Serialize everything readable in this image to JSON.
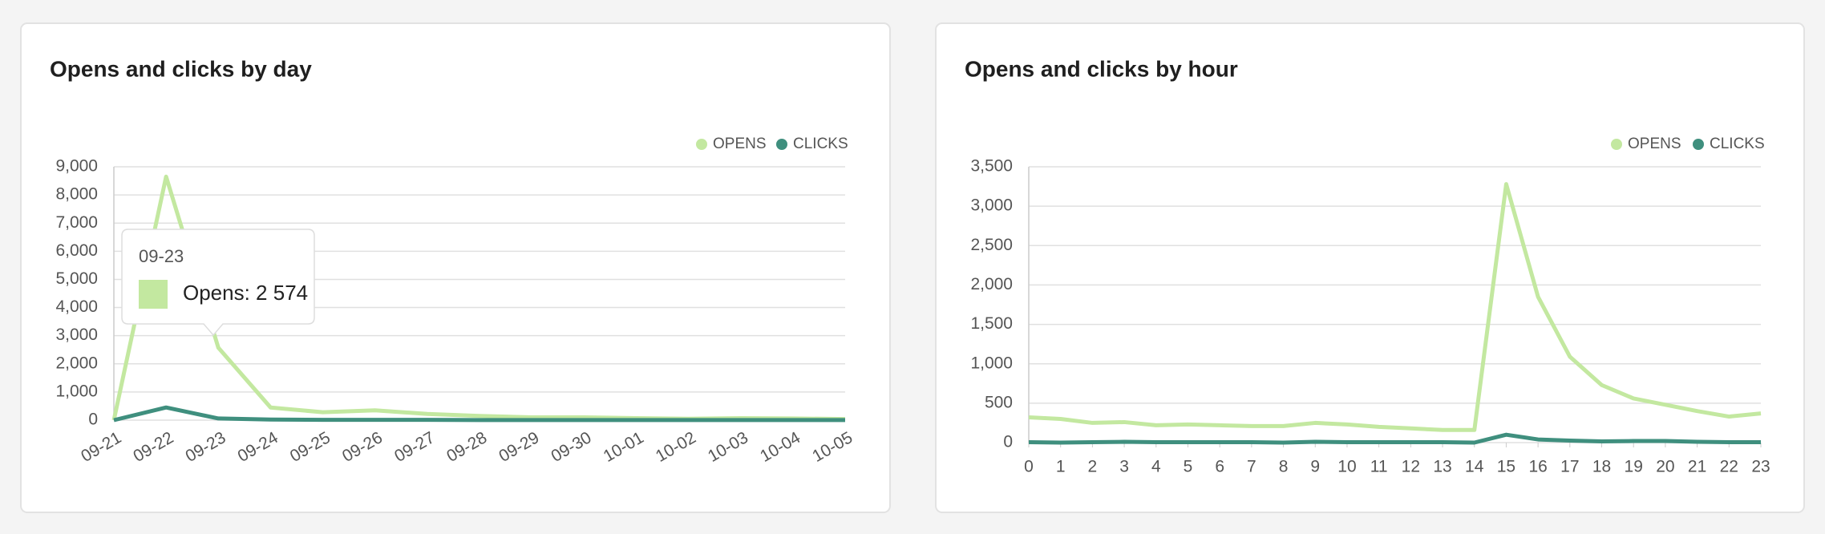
{
  "chart_data": [
    {
      "type": "line",
      "title": "Opens and clicks by day",
      "categories": [
        "09-21",
        "09-22",
        "09-23",
        "09-24",
        "09-25",
        "09-26",
        "09-27",
        "09-28",
        "09-29",
        "09-30",
        "10-01",
        "10-02",
        "10-03",
        "10-04",
        "10-05"
      ],
      "series": [
        {
          "name": "OPENS",
          "color": "#c3e8a0",
          "values": [
            0,
            8650,
            2574,
            450,
            280,
            350,
            220,
            150,
            100,
            100,
            70,
            50,
            70,
            60,
            40
          ]
        },
        {
          "name": "CLICKS",
          "color": "#3f8f7e",
          "values": [
            0,
            450,
            60,
            20,
            10,
            10,
            10,
            5,
            5,
            5,
            5,
            5,
            5,
            5,
            5
          ]
        }
      ],
      "ylim": [
        0,
        9000
      ],
      "yticks": [
        0,
        {
          "value": 1000,
          "label": "1,000"
        },
        {
          "value": 2000,
          "label": "2,000"
        },
        {
          "value": 3000,
          "label": "3,000"
        },
        {
          "value": 4000,
          "label": "4,000"
        },
        {
          "value": 5000,
          "label": "5,000"
        },
        {
          "value": 6000,
          "label": "6,000"
        },
        {
          "value": 7000,
          "label": "7,000"
        },
        {
          "value": 8000,
          "label": "8,000"
        },
        {
          "value": 9000,
          "label": "9,000"
        }
      ],
      "grid": true,
      "tooltip": {
        "title": "09-23",
        "text": "Opens: 2 574"
      }
    },
    {
      "type": "line",
      "title": "Opens and clicks by hour",
      "x": [
        0,
        1,
        2,
        3,
        4,
        5,
        6,
        7,
        8,
        9,
        10,
        11,
        12,
        13,
        14,
        15,
        16,
        17,
        18,
        19,
        20,
        21,
        22,
        23
      ],
      "xlim": [
        0,
        23
      ],
      "xticks": [
        0,
        1,
        2,
        3,
        4,
        5,
        6,
        7,
        8,
        9,
        10,
        11,
        12,
        13,
        14,
        15,
        16,
        17,
        18,
        19,
        20,
        21,
        22,
        23
      ],
      "series": [
        {
          "name": "OPENS",
          "color": "#c3e8a0",
          "values": [
            320,
            300,
            250,
            260,
            220,
            230,
            220,
            210,
            210,
            250,
            230,
            200,
            180,
            160,
            160,
            3280,
            1850,
            1090,
            730,
            560,
            480,
            400,
            330,
            370
          ]
        },
        {
          "name": "CLICKS",
          "color": "#3f8f7e",
          "values": [
            5,
            0,
            5,
            10,
            5,
            5,
            5,
            5,
            0,
            10,
            5,
            5,
            5,
            5,
            0,
            100,
            40,
            25,
            15,
            20,
            20,
            10,
            5,
            5
          ]
        }
      ],
      "ylim": [
        0,
        3500
      ],
      "yticks": [
        0,
        500,
        {
          "value": 1000,
          "label": "1,000"
        },
        {
          "value": 1500,
          "label": "1,500"
        },
        {
          "value": 2000,
          "label": "2,000"
        },
        {
          "value": 2500,
          "label": "2,500"
        },
        {
          "value": 3000,
          "label": "3,000"
        },
        {
          "value": 3500,
          "label": "3,500"
        }
      ],
      "grid": true
    }
  ]
}
